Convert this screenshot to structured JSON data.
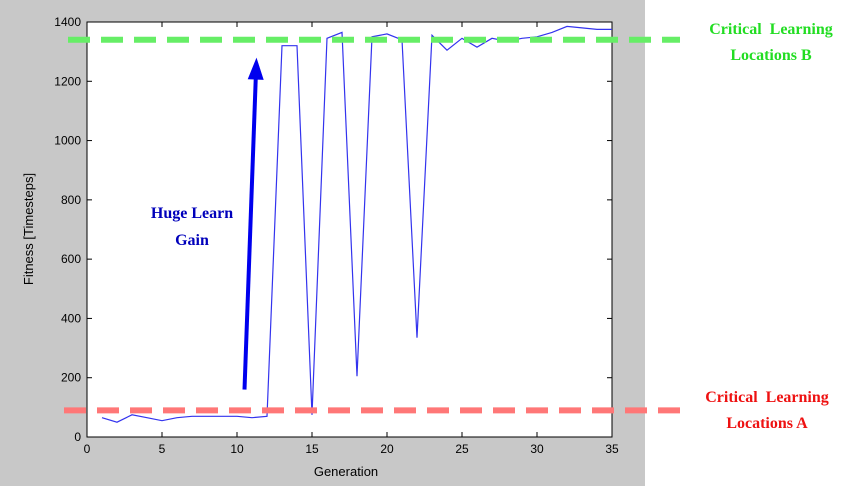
{
  "chart_data": {
    "type": "line",
    "xlabel": "Generation",
    "ylabel": "Fitness [Timesteps]",
    "xlim": [
      0,
      35
    ],
    "ylim": [
      0,
      1400
    ],
    "xticks": [
      0,
      5,
      10,
      15,
      20,
      25,
      30,
      35
    ],
    "yticks": [
      0,
      200,
      400,
      600,
      800,
      1000,
      1200,
      1400
    ],
    "grid": false,
    "series": [
      {
        "color": "#3333ee",
        "x": [
          1,
          2,
          3,
          4,
          5,
          6,
          7,
          8,
          9,
          10,
          11,
          12,
          13,
          14,
          15,
          16,
          17,
          18,
          19,
          20,
          21,
          22,
          23,
          24,
          25,
          26,
          27,
          28,
          29,
          30,
          31,
          32,
          33,
          34,
          35
        ],
        "y": [
          65,
          50,
          75,
          65,
          55,
          65,
          70,
          70,
          70,
          70,
          65,
          70,
          1320,
          1320,
          75,
          1345,
          1365,
          205,
          1350,
          1360,
          1340,
          335,
          1355,
          1305,
          1345,
          1315,
          1345,
          1335,
          1345,
          1350,
          1365,
          1385,
          1380,
          1375,
          1375
        ]
      }
    ],
    "annotations": {
      "line_b": {
        "value": 1340,
        "color": "#66ee66",
        "label_line1": "Critical  Learning",
        "label_line2": "Locations B",
        "label_color": "#22dd22"
      },
      "line_a": {
        "value": 90,
        "color": "#ff7777",
        "label_line1": "Critical  Learning",
        "label_line2": "Locations A",
        "label_color": "#ee1111"
      },
      "arrow": {
        "from": [
          10.5,
          160
        ],
        "to": [
          11.3,
          1280
        ],
        "color": "#0000ee",
        "label_line1": "Huge Learn",
        "label_line2": "Gain",
        "label_color": "#0000bb"
      }
    }
  }
}
